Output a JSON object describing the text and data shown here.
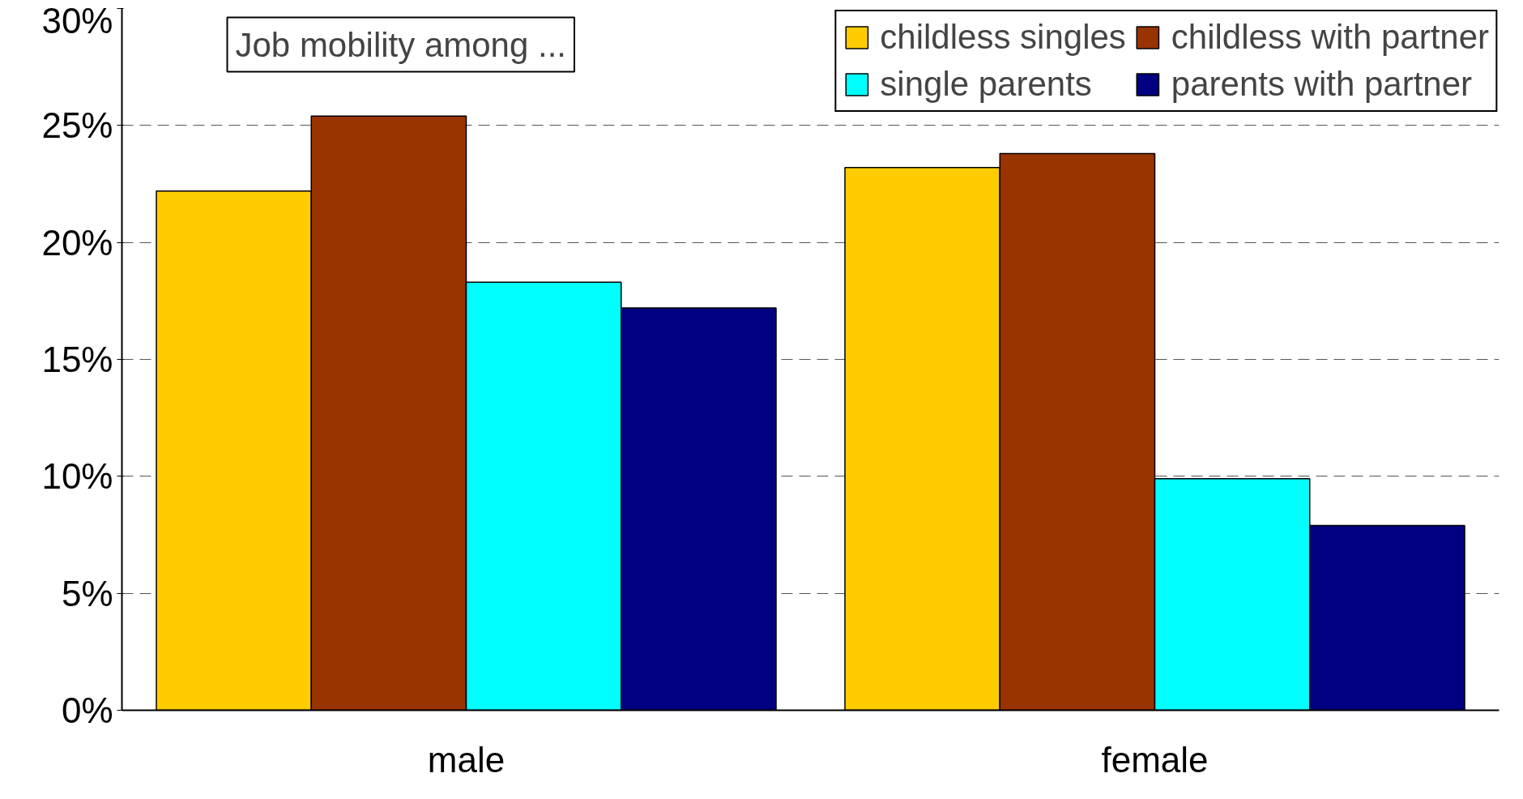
{
  "chart_data": {
    "type": "bar",
    "legend_title": "Job mobility among ...",
    "categories": [
      "male",
      "female"
    ],
    "series": [
      {
        "name": "childless singles",
        "color": "#ffcc00",
        "values": [
          22.2,
          23.2
        ]
      },
      {
        "name": "childless with partner",
        "color": "#993300",
        "values": [
          25.4,
          23.8
        ]
      },
      {
        "name": "single parents",
        "color": "#00ffff",
        "values": [
          18.3,
          9.9
        ]
      },
      {
        "name": "parents with partner",
        "color": "#000080",
        "values": [
          17.2,
          7.9
        ]
      }
    ],
    "ylim": [
      0,
      30
    ],
    "yticks": [
      {
        "value": 0,
        "label": "0%"
      },
      {
        "value": 5,
        "label": "5%"
      },
      {
        "value": 10,
        "label": "10%"
      },
      {
        "value": 15,
        "label": "15%"
      },
      {
        "value": 20,
        "label": "20%"
      },
      {
        "value": 25,
        "label": "25%"
      },
      {
        "value": 30,
        "label": "30%"
      }
    ],
    "grid": "y",
    "legend": "top"
  }
}
